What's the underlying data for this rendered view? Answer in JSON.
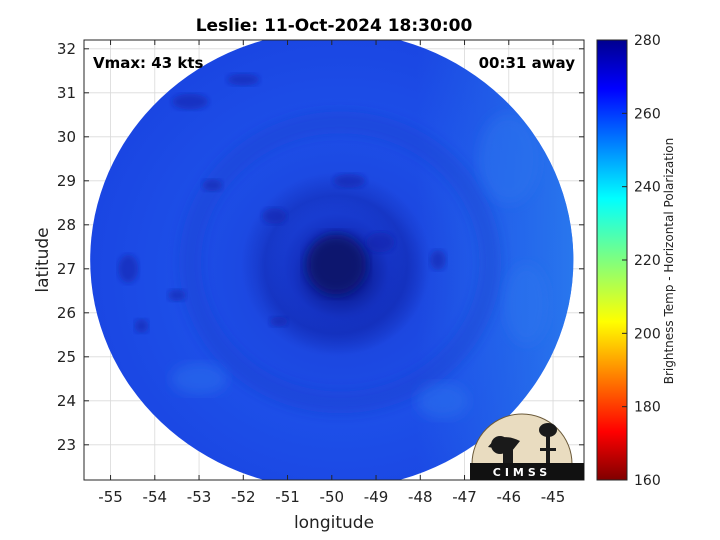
{
  "chart_data": {
    "type": "heatmap",
    "title": "Leslie: 11-Oct-2024 18:30:00",
    "xlabel": "longitude",
    "ylabel": "latitude",
    "xlim": [
      -55.6,
      -44.3
    ],
    "ylim": [
      22.2,
      32.2
    ],
    "xticks": [
      -55,
      -54,
      -53,
      -52,
      -51,
      -50,
      -49,
      -48,
      -47,
      -46,
      -45
    ],
    "yticks": [
      23,
      24,
      25,
      26,
      27,
      28,
      29,
      30,
      31,
      32
    ],
    "grid": true,
    "storm_center": {
      "lon": -49.9,
      "lat": 27.1
    },
    "swath": {
      "center_lon": -50.0,
      "center_lat": 27.2,
      "radius_deg": 5.6
    },
    "colorbar": {
      "label": "Brightness Temp - Horizontal Polarization",
      "range": [
        160,
        280
      ],
      "ticks": [
        160,
        180,
        200,
        220,
        240,
        260,
        280
      ],
      "colormap": "jet"
    },
    "annotations": {
      "vmax": "Vmax: 43 kts",
      "time_offset": "00:31 away"
    }
  },
  "logo": {
    "text": "CIMSS"
  },
  "colors": {
    "field_mid": "#1a44e6",
    "field_dark": "#0a1e8c",
    "field_light": "#2a7ef0",
    "logo_bg": "#e9dcc0"
  }
}
